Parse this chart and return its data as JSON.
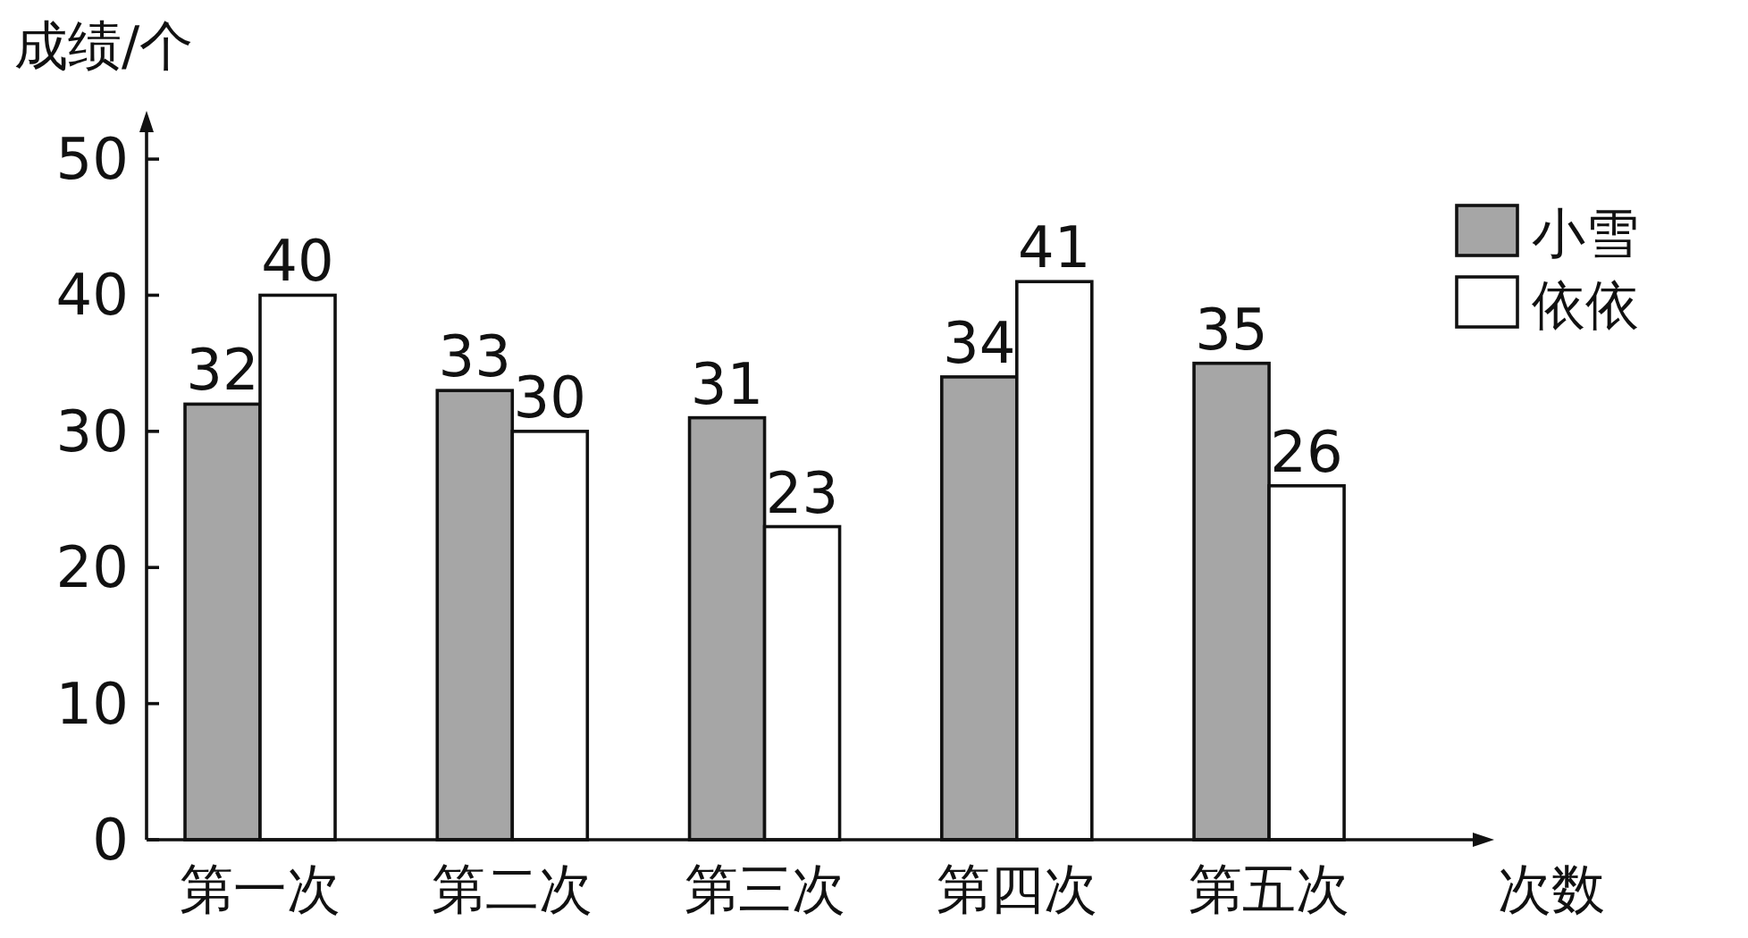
{
  "chart_data": {
    "type": "bar",
    "ylabel": "成绩/个",
    "xlabel": "次数",
    "categories": [
      "第一次",
      "第二次",
      "第三次",
      "第四次",
      "第五次"
    ],
    "series": [
      {
        "name": "小雪",
        "color": "#a6a6a6",
        "values": [
          32,
          33,
          31,
          34,
          35
        ]
      },
      {
        "name": "依依",
        "color": "#ffffff",
        "values": [
          40,
          30,
          23,
          41,
          26
        ]
      }
    ],
    "ylim": [
      0,
      52.5
    ],
    "yticks": [
      0,
      10,
      20,
      30,
      40,
      50
    ],
    "data_labels": true,
    "legend": "top right",
    "grid": false
  }
}
